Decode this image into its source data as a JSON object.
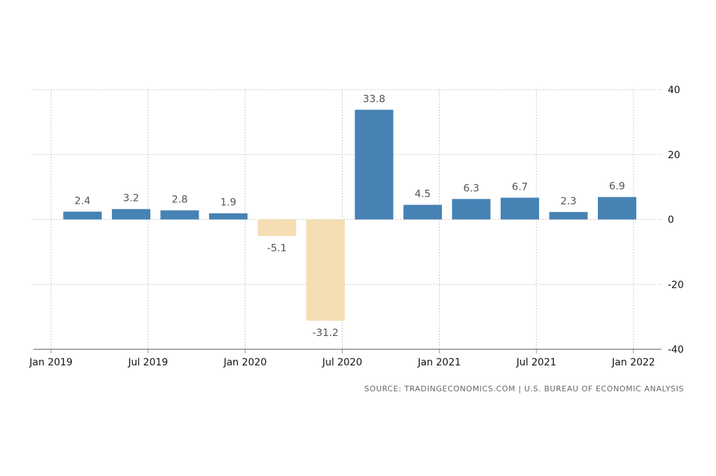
{
  "chart_data": {
    "type": "bar",
    "categories": [
      "Q1 2019",
      "Q2 2019",
      "Q3 2019",
      "Q4 2019",
      "Q1 2020",
      "Q2 2020",
      "Q3 2020",
      "Q4 2020",
      "Q1 2021",
      "Q2 2021",
      "Q3 2021",
      "Q4 2021"
    ],
    "values": [
      2.4,
      3.2,
      2.8,
      1.9,
      -5.1,
      -31.2,
      33.8,
      4.5,
      6.3,
      6.7,
      2.3,
      6.9
    ],
    "value_labels": [
      "2.4",
      "3.2",
      "2.8",
      "1.9",
      "-5.1",
      "-31.2",
      "33.8",
      "4.5",
      "6.3",
      "6.7",
      "2.3",
      "6.9"
    ],
    "x_tick_labels": [
      "Jan 2019",
      "Jul 2019",
      "Jan 2020",
      "Jul 2020",
      "Jan 2021",
      "Jul 2021",
      "Jan 2022"
    ],
    "y_ticks": [
      40,
      20,
      0,
      -20,
      -40
    ],
    "ylim": [
      -40,
      40
    ],
    "grid": true,
    "y_axis_side": "right",
    "positive_color": "#4682b4",
    "negative_color": "#f5deb3"
  },
  "source": "SOURCE: TRADINGECONOMICS.COM | U.S. BUREAU OF ECONOMIC ANALYSIS"
}
